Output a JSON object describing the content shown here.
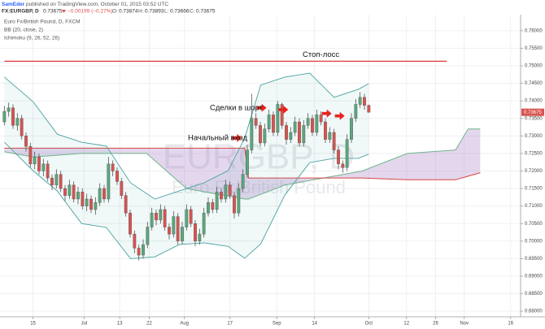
{
  "topbar": {
    "author": "SamEder",
    "published": "published on TradingView.com, October 01, 2015 03:52 UTC"
  },
  "header": {
    "symbol": "FX:EURGBP, D",
    "change": "−0.00199 (−0.27%)",
    "ohlc_labels": [
      "O:",
      "H:",
      "L:",
      "C:"
    ]
  },
  "legend": [
    "Euro Fx/British Pound, D, FXCM",
    "BB (20, close, 2)",
    "Ichimoku (9, 26, 52, 26)"
  ],
  "watermark": [
    "EURGBP, D",
    "Euro Fx/British Pound"
  ],
  "chart_data": {
    "type": "candlestick",
    "up_color": "#5aa77d",
    "down_color": "#d9534f",
    "grid": true,
    "xlim": [
      -1,
      119
    ],
    "ylim": [
      0.6784,
      0.7646
    ],
    "yticks": [
      {
        "value": 0.68,
        "label": "0.68000"
      },
      {
        "value": 0.685,
        "label": "0.68500"
      },
      {
        "value": 0.69,
        "label": "0.69000"
      },
      {
        "value": 0.695,
        "label": "0.69500"
      },
      {
        "value": 0.7,
        "label": "0.70000"
      },
      {
        "value": 0.705,
        "label": "0.70500"
      },
      {
        "value": 0.71,
        "label": "0.71000"
      },
      {
        "value": 0.715,
        "label": "0.71500"
      },
      {
        "value": 0.72,
        "label": "0.72000"
      },
      {
        "value": 0.725,
        "label": "0.72500"
      },
      {
        "value": 0.73,
        "label": "0.73000"
      },
      {
        "value": 0.735,
        "label": "0.73500"
      },
      {
        "value": 0.74,
        "label": "0.74000"
      },
      {
        "value": 0.745,
        "label": "0.74500"
      },
      {
        "value": 0.75,
        "label": "0.75000"
      },
      {
        "value": 0.755,
        "label": "0.75500"
      },
      {
        "value": 0.76,
        "label": "0.76000"
      }
    ],
    "xticks": [
      {
        "value": 6.6,
        "label": "15"
      },
      {
        "value": 18.4,
        "label": "Jul"
      },
      {
        "value": 26.6,
        "label": "13"
      },
      {
        "value": 33.4,
        "label": "22"
      },
      {
        "value": 41.5,
        "label": "Aug"
      },
      {
        "value": 52,
        "label": "17"
      },
      {
        "value": 62.8,
        "label": "Sep"
      },
      {
        "value": 71.5,
        "label": "14"
      },
      {
        "value": 84,
        "label": "Oct"
      },
      {
        "value": 92.7,
        "label": "12"
      },
      {
        "value": 99.4,
        "label": "26"
      },
      {
        "value": 106,
        "label": "Nov"
      },
      {
        "value": 116.7,
        "label": "16"
      }
    ],
    "open": [
      0.734,
      0.737,
      0.738,
      0.733,
      0.735,
      0.73,
      0.727,
      0.722,
      0.724,
      0.72,
      0.722,
      0.718,
      0.716,
      0.719,
      0.715,
      0.713,
      0.716,
      0.712,
      0.714,
      0.71,
      0.712,
      0.709,
      0.711,
      0.715,
      0.712,
      0.722,
      0.72,
      0.717,
      0.713,
      0.708,
      0.702,
      0.698,
      0.696,
      0.699,
      0.704,
      0.708,
      0.706,
      0.709,
      0.704,
      0.702,
      0.707,
      0.7,
      0.704,
      0.709,
      0.705,
      0.7,
      0.702,
      0.708,
      0.711,
      0.709,
      0.714,
      0.712,
      0.716,
      0.713,
      0.708,
      0.715,
      0.719,
      0.726,
      0.735,
      0.733,
      0.728,
      0.732,
      0.736,
      0.731,
      0.739,
      0.733,
      0.729,
      0.731,
      0.734,
      0.728,
      0.733,
      0.735,
      0.731,
      0.736,
      0.734,
      0.729,
      0.731,
      0.726,
      0.722,
      0.721,
      0.729,
      0.735,
      0.739,
      0.741,
      0.73874
    ],
    "high": [
      0.7385,
      0.7395,
      0.739,
      0.7365,
      0.736,
      0.731,
      0.728,
      0.7255,
      0.725,
      0.7235,
      0.723,
      0.719,
      0.7205,
      0.72,
      0.716,
      0.7175,
      0.717,
      0.7155,
      0.715,
      0.7135,
      0.713,
      0.7125,
      0.7165,
      0.716,
      0.724,
      0.723,
      0.721,
      0.718,
      0.714,
      0.709,
      0.703,
      0.699,
      0.7005,
      0.7055,
      0.7095,
      0.709,
      0.7105,
      0.71,
      0.705,
      0.7085,
      0.708,
      0.7055,
      0.7105,
      0.71,
      0.706,
      0.7035,
      0.7095,
      0.7125,
      0.712,
      0.7155,
      0.715,
      0.7175,
      0.717,
      0.714,
      0.7165,
      0.7205,
      0.7275,
      0.742,
      0.7365,
      0.734,
      0.7335,
      0.7375,
      0.737,
      0.74,
      0.7395,
      0.734,
      0.7325,
      0.7355,
      0.735,
      0.7345,
      0.7365,
      0.736,
      0.7375,
      0.737,
      0.735,
      0.7325,
      0.732,
      0.727,
      0.723,
      0.7305,
      0.7365,
      0.7405,
      0.7425,
      0.742,
      0.73893
    ],
    "low": [
      0.733,
      0.7355,
      0.732,
      0.7315,
      0.729,
      0.7255,
      0.721,
      0.7205,
      0.719,
      0.7185,
      0.717,
      0.7145,
      0.715,
      0.714,
      0.7115,
      0.712,
      0.711,
      0.7105,
      0.709,
      0.7085,
      0.708,
      0.7075,
      0.71,
      0.711,
      0.711,
      0.7185,
      0.716,
      0.712,
      0.707,
      0.701,
      0.6965,
      0.6945,
      0.695,
      0.698,
      0.703,
      0.7045,
      0.705,
      0.703,
      0.7005,
      0.701,
      0.699,
      0.699,
      0.703,
      0.704,
      0.6985,
      0.699,
      0.701,
      0.707,
      0.708,
      0.708,
      0.711,
      0.711,
      0.712,
      0.7065,
      0.707,
      0.714,
      0.718,
      0.725,
      0.732,
      0.727,
      0.727,
      0.731,
      0.73,
      0.73,
      0.732,
      0.7275,
      0.728,
      0.73,
      0.727,
      0.727,
      0.732,
      0.73,
      0.73,
      0.733,
      0.728,
      0.728,
      0.725,
      0.7205,
      0.7195,
      0.72,
      0.728,
      0.734,
      0.738,
      0.7375,
      0.73666
    ],
    "close": [
      0.737,
      0.738,
      0.733,
      0.735,
      0.73,
      0.727,
      0.722,
      0.724,
      0.72,
      0.722,
      0.718,
      0.716,
      0.719,
      0.715,
      0.713,
      0.716,
      0.712,
      0.714,
      0.71,
      0.712,
      0.709,
      0.711,
      0.715,
      0.712,
      0.722,
      0.72,
      0.717,
      0.713,
      0.708,
      0.702,
      0.698,
      0.696,
      0.699,
      0.704,
      0.708,
      0.706,
      0.709,
      0.704,
      0.702,
      0.707,
      0.7,
      0.704,
      0.709,
      0.705,
      0.7,
      0.702,
      0.708,
      0.711,
      0.709,
      0.714,
      0.712,
      0.716,
      0.713,
      0.708,
      0.715,
      0.719,
      0.726,
      0.735,
      0.733,
      0.728,
      0.732,
      0.736,
      0.731,
      0.739,
      0.733,
      0.729,
      0.731,
      0.734,
      0.728,
      0.733,
      0.735,
      0.731,
      0.736,
      0.734,
      0.729,
      0.731,
      0.726,
      0.722,
      0.721,
      0.729,
      0.735,
      0.739,
      0.741,
      0.7387,
      0.73675
    ],
    "bollinger": {
      "color": "#4aa3a0",
      "x": [
        0,
        6.6,
        12.2,
        17.8,
        23.5,
        29.1,
        34.7,
        40.3,
        46,
        51.6,
        55.4,
        59.1,
        64.7,
        70.4,
        76,
        81.6,
        84
      ],
      "upper": [
        0.7468,
        0.7398,
        0.7305,
        0.7282,
        0.7271,
        0.7166,
        0.712,
        0.7143,
        0.7166,
        0.7201,
        0.7294,
        0.7445,
        0.7468,
        0.7479,
        0.741,
        0.7433,
        0.7449
      ],
      "lower": [
        0.7282,
        0.7201,
        0.7143,
        0.705,
        0.7039,
        0.695,
        0.6955,
        0.699,
        0.6995,
        0.6985,
        0.6951,
        0.6992,
        0.7132,
        0.7224,
        0.7236,
        0.7236,
        0.7248
      ]
    },
    "ichimoku": {
      "fill": "#a57cc4",
      "x": [
        0,
        6.6,
        17.8,
        32.8,
        42,
        55.4,
        56.3,
        64.7,
        82.5,
        92.9,
        104,
        106.9,
        109.7
      ],
      "span_a": {
        "color": "#6fb58a",
        "values": [
          0.7255,
          0.724,
          0.725,
          0.725,
          0.715,
          0.712,
          0.712,
          0.716,
          0.72,
          0.725,
          0.726,
          0.732,
          0.732
        ]
      },
      "span_b": {
        "color": "#d64541",
        "values": [
          0.7265,
          0.7265,
          0.7265,
          0.7265,
          0.7265,
          0.7265,
          0.718,
          0.718,
          0.718,
          0.7175,
          0.7175,
          0.7185,
          0.7195
        ]
      }
    },
    "stop_loss": {
      "label": "Стоп-лосс",
      "color": "#e03a3a",
      "x": [
        0,
        102
      ],
      "values": [
        0.7513,
        0.7513
      ]
    },
    "markers": {
      "color": "#e8241e",
      "x": [
        55.3,
        61,
        66,
        76,
        79
      ],
      "values": [
        0.7294,
        0.738,
        0.7375,
        0.7364,
        0.7357
      ]
    },
    "annotations": [
      "Сделки в шорт",
      "Начальный вход"
    ]
  }
}
